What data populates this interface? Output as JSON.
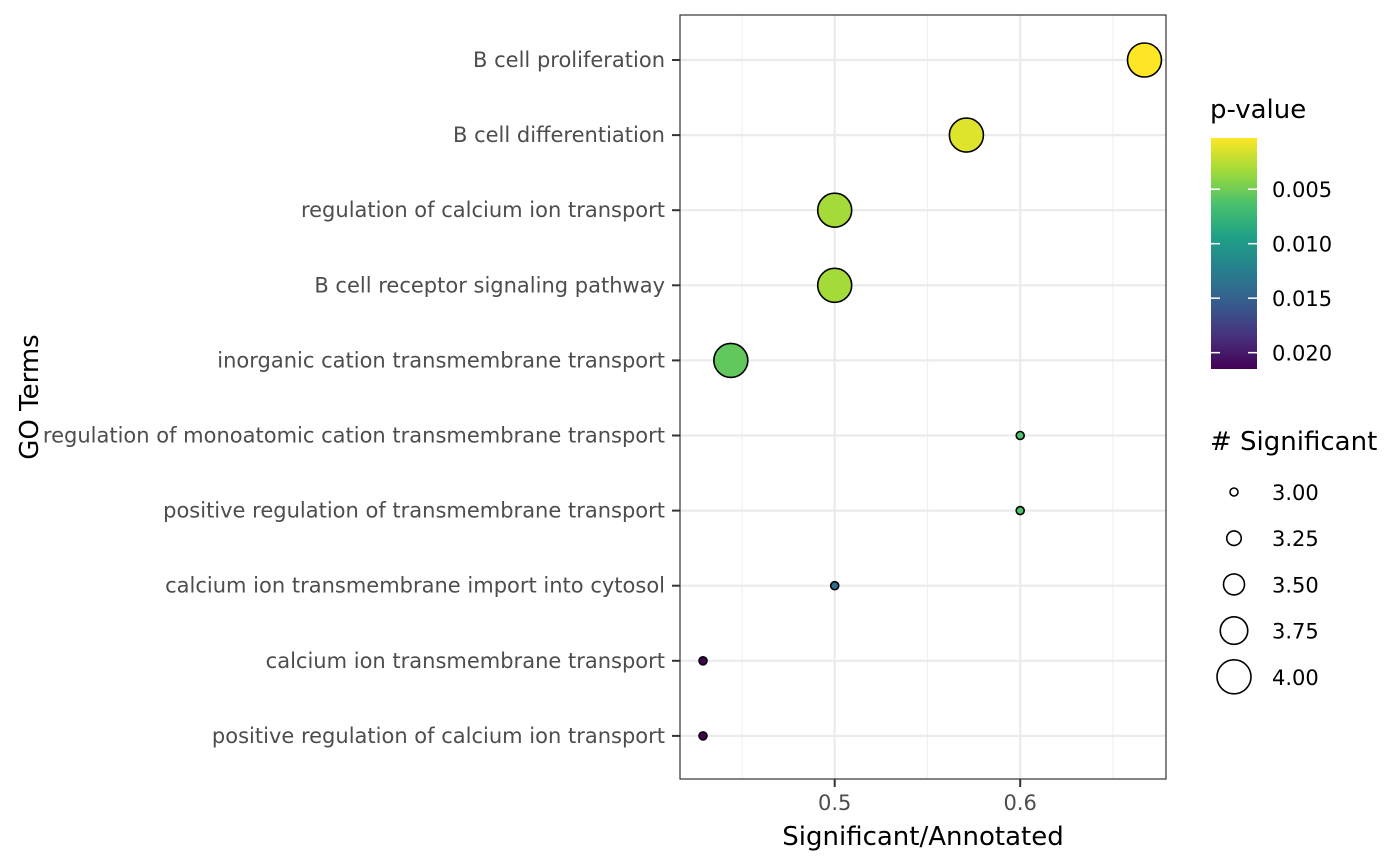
{
  "chart_data": {
    "type": "scatter",
    "title": "",
    "xlabel": "Significant/Annotated",
    "ylabel": "GO Terms",
    "xlim": [
      0.4166,
      0.6786
    ],
    "x_ticks": [
      0.5,
      0.6
    ],
    "x_tick_labels": [
      "0.5",
      "0.6"
    ],
    "grid": true,
    "categories": [
      "B cell proliferation",
      "B cell differentiation",
      "regulation of calcium ion transport",
      "B cell receptor signaling pathway",
      "inorganic cation transmembrane transport",
      "regulation of monoatomic cation transmembrane transport",
      "positive regulation of transmembrane transport",
      "calcium ion transmembrane import into cytosol",
      "calcium ion transmembrane transport",
      "positive regulation of calcium ion transport"
    ],
    "points": [
      {
        "term": "B cell proliferation",
        "x": 0.667,
        "significant": 4,
        "pvalue": 0.0003
      },
      {
        "term": "B cell differentiation",
        "x": 0.571,
        "significant": 4,
        "pvalue": 0.0013
      },
      {
        "term": "regulation of calcium ion transport",
        "x": 0.5,
        "significant": 4,
        "pvalue": 0.0032
      },
      {
        "term": "B cell receptor signaling pathway",
        "x": 0.5,
        "significant": 4,
        "pvalue": 0.0032
      },
      {
        "term": "inorganic cation transmembrane transport",
        "x": 0.444,
        "significant": 4,
        "pvalue": 0.0055
      },
      {
        "term": "regulation of monoatomic cation transmembrane transport",
        "x": 0.6,
        "significant": 3,
        "pvalue": 0.0062
      },
      {
        "term": "positive regulation of transmembrane transport",
        "x": 0.6,
        "significant": 3,
        "pvalue": 0.0062
      },
      {
        "term": "calcium ion transmembrane import into cytosol",
        "x": 0.5,
        "significant": 3,
        "pvalue": 0.0138
      },
      {
        "term": "calcium ion transmembrane transport",
        "x": 0.429,
        "significant": 3,
        "pvalue": 0.0215
      },
      {
        "term": "positive regulation of calcium ion transport",
        "x": 0.429,
        "significant": 3,
        "pvalue": 0.0215
      }
    ],
    "color_legend": {
      "title": "p-value",
      "range": [
        0.0003,
        0.0215
      ],
      "ticks": [
        0.005,
        0.01,
        0.015,
        0.02
      ],
      "tick_labels": [
        "0.005",
        "0.010",
        "0.015",
        "0.020"
      ],
      "colors": [
        "#fde725",
        "#a0da39",
        "#4ac16d",
        "#1fa187",
        "#277f8e",
        "#365c8d",
        "#46327e",
        "#440154"
      ]
    },
    "size_legend": {
      "title": "# Significant",
      "values": [
        3.0,
        3.25,
        3.5,
        3.75,
        4.0
      ],
      "labels": [
        "3.00",
        "3.25",
        "3.50",
        "3.75",
        "4.00"
      ]
    },
    "legend_position": "right"
  }
}
